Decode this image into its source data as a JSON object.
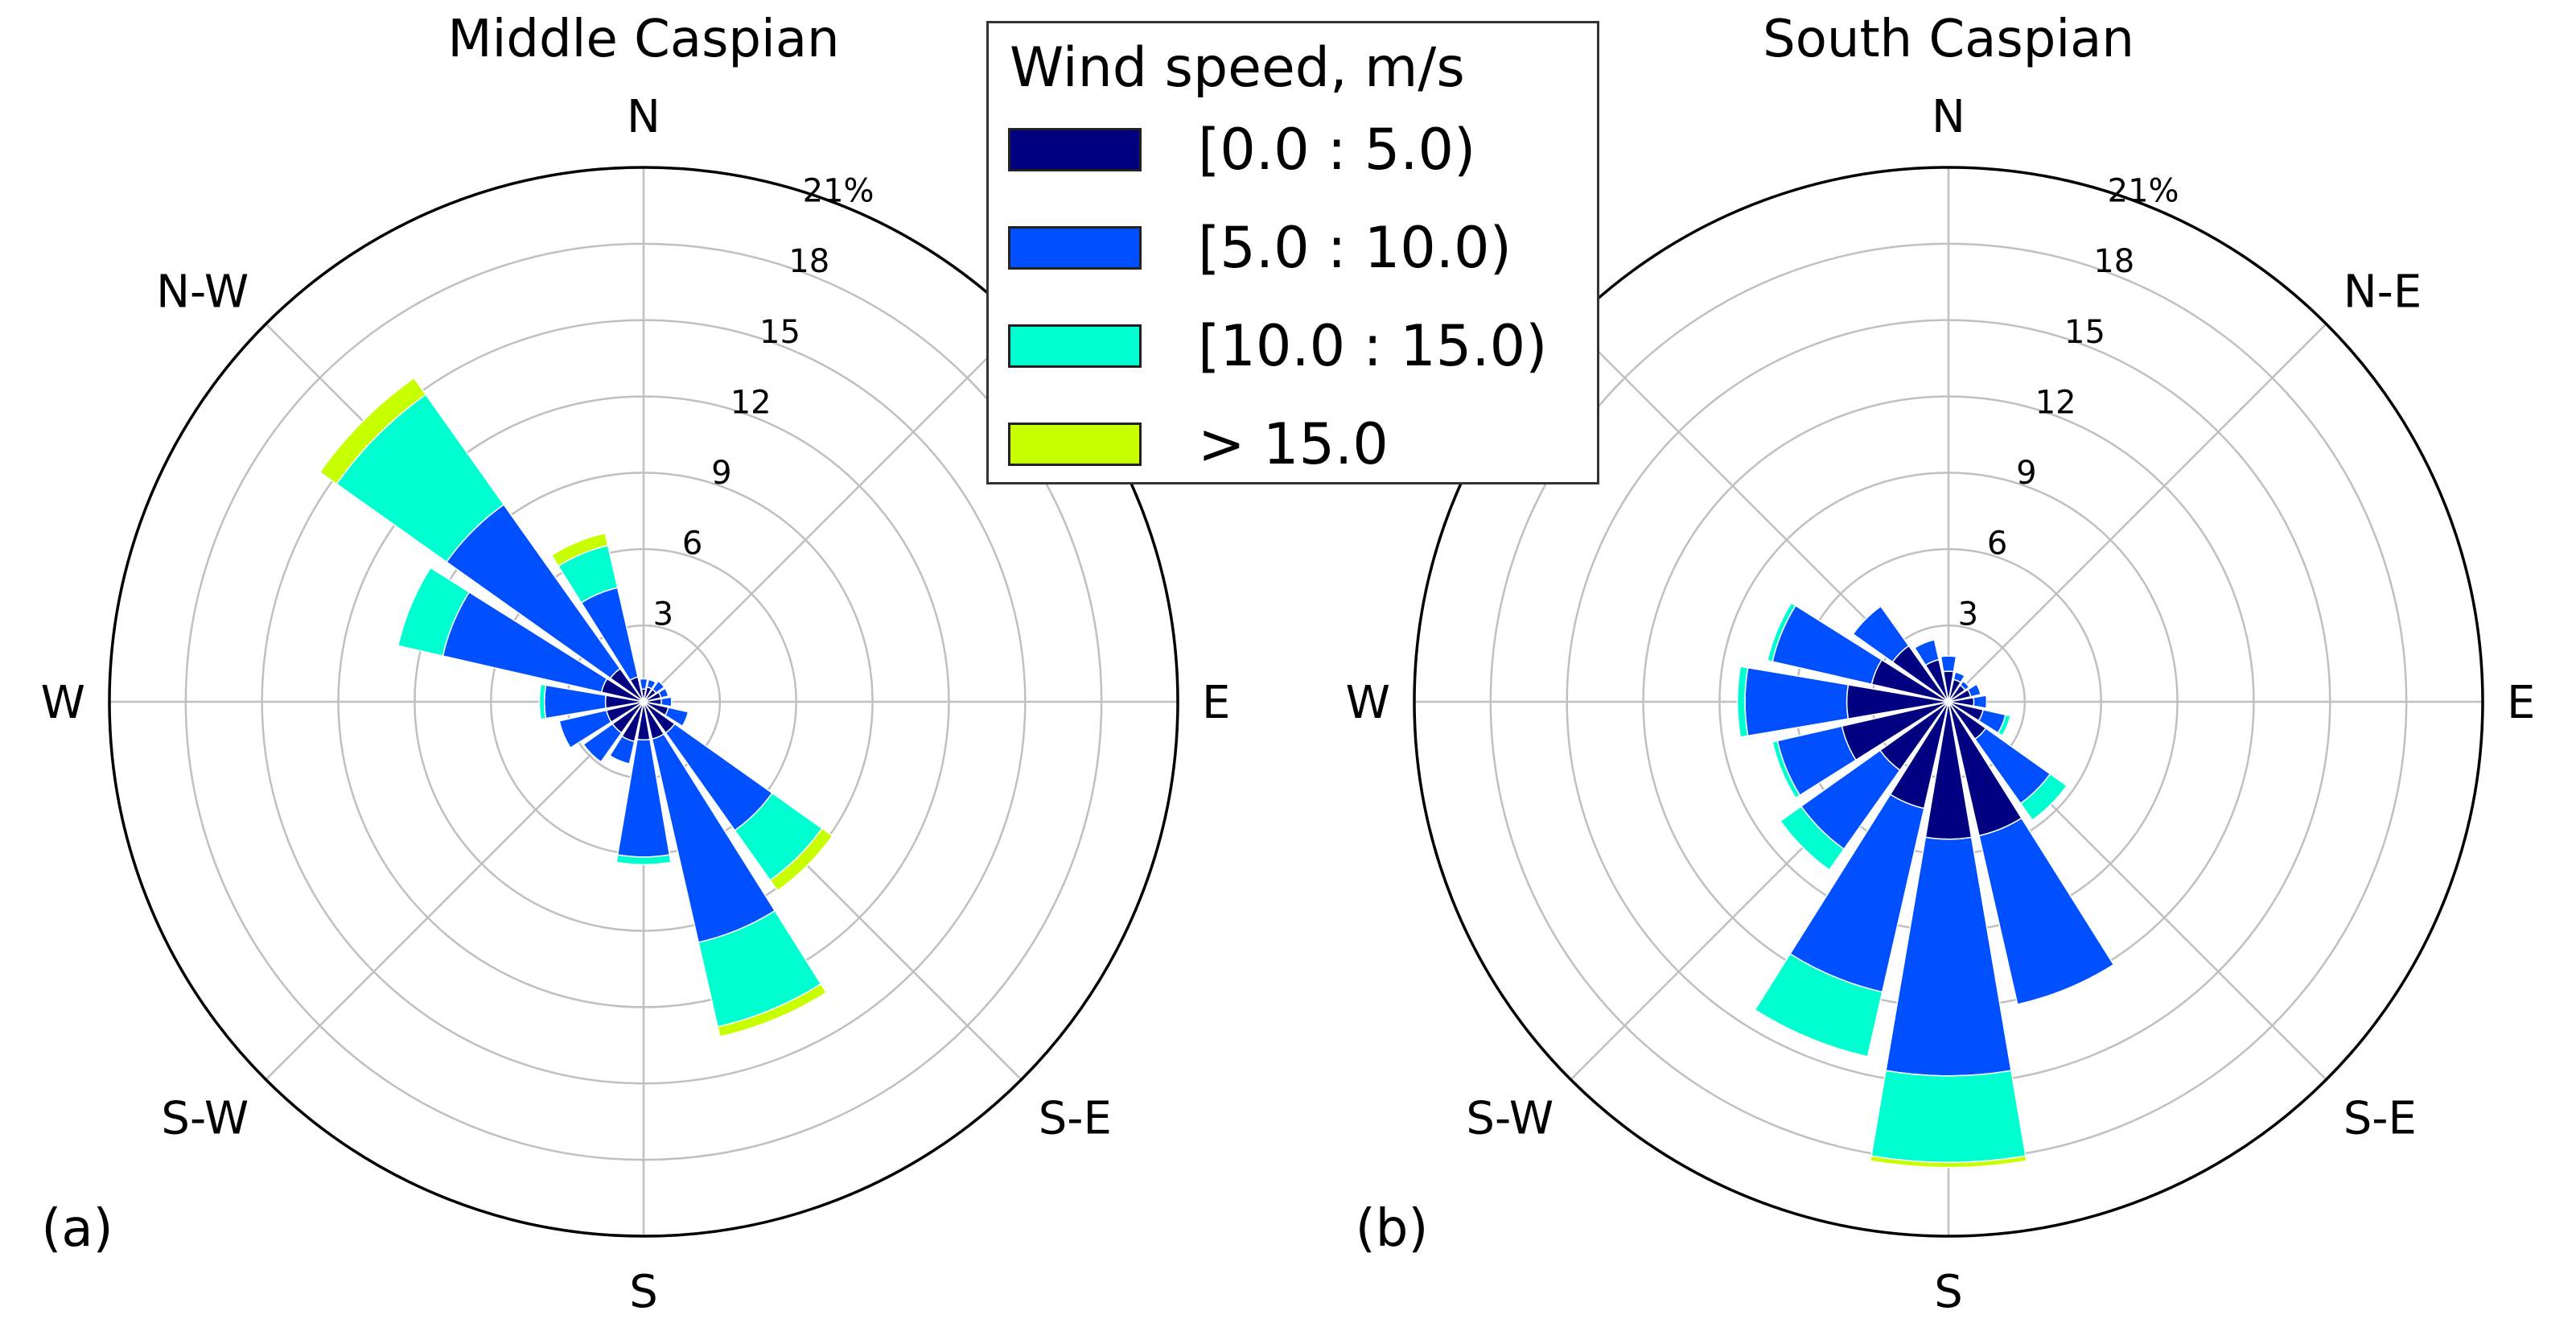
{
  "legend": {
    "title": "Wind speed, m/s",
    "entries": [
      {
        "label": "[0.0 : 5.0)",
        "color": "#000080"
      },
      {
        "label": "[5.0 : 10.0)",
        "color": "#0050ff"
      },
      {
        "label": "[10.0 : 15.0)",
        "color": "#00ffd0"
      },
      {
        "label": "> 15.0",
        "color": "#c8ff00"
      }
    ]
  },
  "chart_data": [
    {
      "type": "windrose",
      "title": "Middle Caspian",
      "panel_label": "(a)",
      "radial_ticks": [
        "3",
        "6",
        "9",
        "12",
        "15",
        "18",
        "21%"
      ],
      "rmax": 21,
      "directions": [
        "N",
        "NNE",
        "NE",
        "ENE",
        "E",
        "ESE",
        "SE",
        "SSE",
        "S",
        "SSW",
        "SW",
        "WSW",
        "W",
        "WNW",
        "NW",
        "NNW"
      ],
      "direction_labels": [
        {
          "text": "N",
          "angle": 0
        },
        {
          "text": "E",
          "angle": 90
        },
        {
          "text": "S-E",
          "angle": 135
        },
        {
          "text": "S",
          "angle": 180
        },
        {
          "text": "S-W",
          "angle": 225
        },
        {
          "text": "W",
          "angle": 270
        },
        {
          "text": "N-W",
          "angle": 315
        }
      ],
      "series": [
        {
          "name": "[0.0 : 5.0)",
          "values": [
            0.5,
            0.6,
            0.6,
            0.7,
            0.7,
            1.0,
            1.5,
            1.5,
            1.5,
            1.6,
            1.5,
            1.5,
            1.5,
            1.7,
            1.6,
            1.0
          ]
        },
        {
          "name": "[5.0 : 10.0)",
          "values": [
            0.4,
            0.3,
            0.4,
            0.3,
            0.4,
            0.8,
            4.7,
            8.2,
            4.6,
            0.9,
            1.4,
            1.9,
            2.4,
            6.4,
            7.9,
            3.6
          ]
        },
        {
          "name": "[10.0 : 15.0)",
          "values": [
            0.0,
            0.0,
            0.0,
            0.0,
            0.0,
            0.0,
            2.4,
            3.4,
            0.3,
            0.0,
            0.0,
            0.0,
            0.2,
            1.8,
            5.3,
            1.7
          ]
        },
        {
          "name": "> 15.0",
          "values": [
            0.0,
            0.0,
            0.0,
            0.0,
            0.0,
            0.0,
            0.5,
            0.4,
            0.0,
            0.0,
            0.0,
            0.0,
            0.0,
            0.0,
            0.8,
            0.5
          ]
        }
      ]
    },
    {
      "type": "windrose",
      "title": "South Caspian",
      "panel_label": "(b)",
      "radial_ticks": [
        "3",
        "6",
        "9",
        "12",
        "15",
        "18",
        "21%"
      ],
      "rmax": 21,
      "directions": [
        "N",
        "NNE",
        "NE",
        "ENE",
        "E",
        "ESE",
        "SE",
        "SSE",
        "S",
        "SSW",
        "SW",
        "WSW",
        "W",
        "WNW",
        "NW",
        "NNW"
      ],
      "direction_labels": [
        {
          "text": "N",
          "angle": 0
        },
        {
          "text": "N-E",
          "angle": 45
        },
        {
          "text": "E",
          "angle": 90
        },
        {
          "text": "S-E",
          "angle": 135
        },
        {
          "text": "S",
          "angle": 180
        },
        {
          "text": "S-W",
          "angle": 225
        },
        {
          "text": "W",
          "angle": 270
        }
      ],
      "series": [
        {
          "name": "[0.0 : 5.0)",
          "values": [
            1.2,
            0.9,
            0.8,
            0.9,
            1.0,
            1.4,
            1.8,
            5.4,
            5.4,
            4.3,
            3.3,
            4.3,
            4.0,
            3.1,
            2.7,
            1.7
          ]
        },
        {
          "name": "[5.0 : 10.0)",
          "values": [
            0.6,
            0.3,
            0.2,
            0.4,
            0.5,
            0.9,
            3.1,
            6.8,
            9.3,
            7.4,
            3.8,
            2.6,
            4.0,
            4.0,
            1.9,
            0.8
          ]
        },
        {
          "name": "[10.0 : 15.0)",
          "values": [
            0.0,
            0.0,
            0.0,
            0.0,
            0.0,
            0.2,
            0.8,
            0.0,
            3.4,
            2.6,
            1.0,
            0.2,
            0.3,
            0.2,
            0.0,
            0.0
          ]
        },
        {
          "name": "> 15.0",
          "values": [
            0.0,
            0.0,
            0.0,
            0.0,
            0.0,
            0.0,
            0.0,
            0.0,
            0.2,
            0.0,
            0.0,
            0.0,
            0.0,
            0.0,
            0.0,
            0.0
          ]
        }
      ]
    }
  ]
}
